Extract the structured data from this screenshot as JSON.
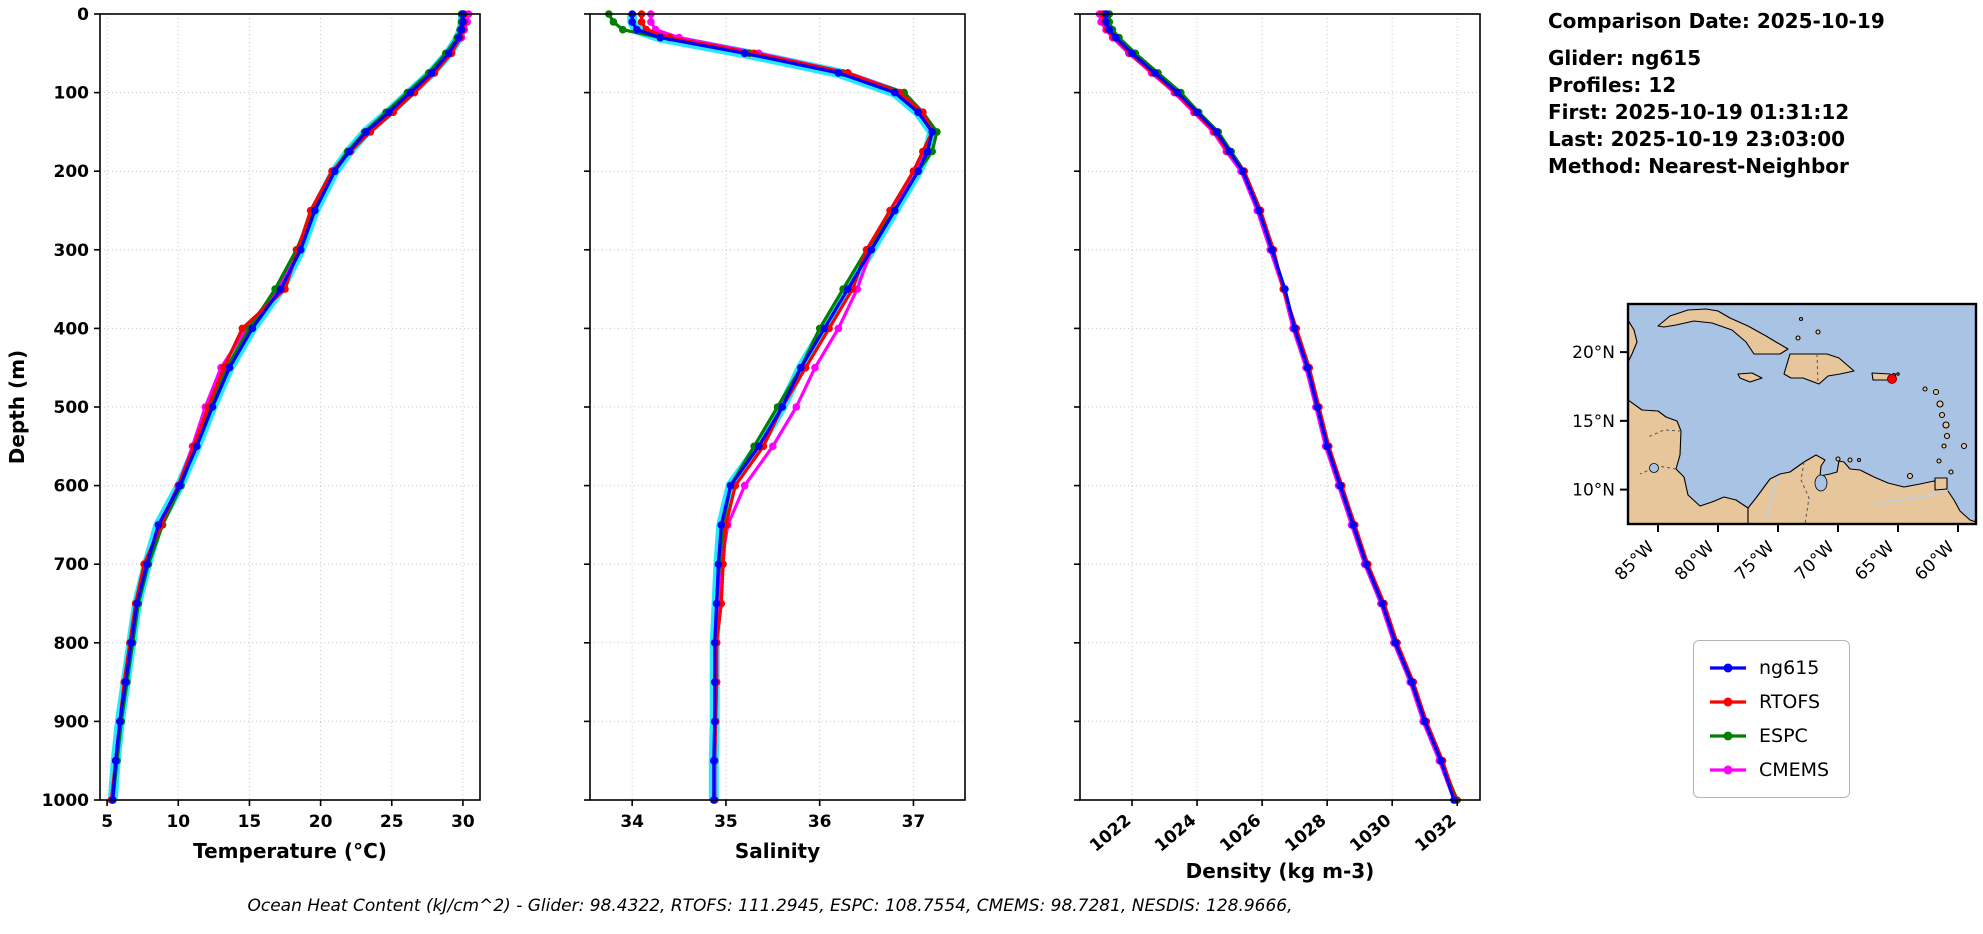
{
  "info_panel": {
    "comparison_date": "Comparison Date: 2025-10-19",
    "glider": "Glider: ng615",
    "profiles": "Profiles: 12",
    "first": "First: 2025-10-19 01:31:12",
    "last": "Last: 2025-10-19 23:03:00",
    "method": "Method: Nearest-Neighbor"
  },
  "legend": {
    "items": [
      {
        "label": "ng615",
        "color": "#0000ff"
      },
      {
        "label": "RTOFS",
        "color": "#ff0000"
      },
      {
        "label": "ESPC",
        "color": "#008000"
      },
      {
        "label": "CMEMS",
        "color": "#ff00ff"
      }
    ]
  },
  "footer": {
    "text": "Ocean Heat Content (kJ/cm^2) - Glider: 98.4322,  RTOFS: 111.2945,  ESPC: 108.7554,  CMEMS: 98.7281,  NESDIS: 128.9666,",
    "values": {
      "glider": 98.4322,
      "rtofs": 111.2945,
      "espc": 108.7554,
      "cmems": 98.7281,
      "nesdis": 128.9666
    }
  },
  "map": {
    "lat_ticks": [
      "20°N",
      "15°N",
      "10°N"
    ],
    "lon_ticks": [
      "85°W",
      "80°W",
      "75°W",
      "70°W",
      "65°W",
      "60°W"
    ],
    "ocean_color": "#a9c3e4",
    "land_color": "#e8c69c",
    "marker_color": "#ff0000",
    "marker": {
      "lon": -65.5,
      "lat": 18.05
    }
  },
  "chart_data": [
    {
      "id": "temperature",
      "type": "line",
      "xlabel": "Temperature (°C)",
      "ylabel": "Depth (m)",
      "xlim": [
        4.5,
        31.2
      ],
      "ylim": [
        0,
        1000
      ],
      "xticks": [
        5,
        10,
        15,
        20,
        25,
        30
      ],
      "yticks": [
        0,
        100,
        200,
        300,
        400,
        500,
        600,
        700,
        800,
        900,
        1000
      ],
      "show_ylabels": true,
      "xtick_rotate": false,
      "grid": true,
      "depths": [
        0,
        10,
        20,
        30,
        50,
        75,
        100,
        125,
        150,
        175,
        200,
        250,
        300,
        350,
        400,
        450,
        500,
        550,
        600,
        650,
        700,
        750,
        800,
        850,
        900,
        950,
        1000
      ],
      "series": [
        {
          "name": "ng615",
          "color": "#0000ff",
          "halo": "#00e5ff",
          "values": [
            30.0,
            30.0,
            29.9,
            29.7,
            29.0,
            27.8,
            26.3,
            24.8,
            23.2,
            22.0,
            21.0,
            19.6,
            18.6,
            17.2,
            15.2,
            13.6,
            12.4,
            11.3,
            10.1,
            8.6,
            7.8,
            7.1,
            6.7,
            6.3,
            5.9,
            5.6,
            5.4
          ]
        },
        {
          "name": "RTOFS",
          "color": "#ff0000",
          "values": [
            30.1,
            30.1,
            30.0,
            29.8,
            29.2,
            28.0,
            26.6,
            25.1,
            23.5,
            22.1,
            20.8,
            19.3,
            18.4,
            17.5,
            14.5,
            13.2,
            12.1,
            11.1,
            10.0,
            8.8,
            7.6,
            7.0,
            6.6,
            6.2,
            5.9,
            5.6,
            5.3
          ]
        },
        {
          "name": "ESPC",
          "color": "#008000",
          "values": [
            29.9,
            29.9,
            29.8,
            29.6,
            28.8,
            27.6,
            26.1,
            24.6,
            23.1,
            21.9,
            20.9,
            19.5,
            18.3,
            16.8,
            15.0,
            13.4,
            12.2,
            11.2,
            10.2,
            8.9,
            7.9,
            7.2,
            6.8,
            6.4,
            6.0,
            5.7,
            5.4
          ]
        },
        {
          "name": "CMEMS",
          "color": "#ff00ff",
          "values": [
            30.4,
            30.3,
            30.1,
            29.9,
            29.1,
            27.9,
            26.4,
            24.9,
            23.3,
            22.0,
            20.9,
            19.4,
            18.5,
            17.0,
            14.8,
            13.0,
            11.9,
            11.0,
            10.0,
            8.7,
            7.7,
            7.1,
            6.7,
            6.3,
            5.9,
            5.6,
            5.4
          ]
        }
      ]
    },
    {
      "id": "salinity",
      "type": "line",
      "xlabel": "Salinity",
      "ylabel": "",
      "xlim": [
        33.55,
        37.55
      ],
      "ylim": [
        0,
        1000
      ],
      "xticks": [
        34,
        35,
        36,
        37
      ],
      "yticks": [
        0,
        100,
        200,
        300,
        400,
        500,
        600,
        700,
        800,
        900,
        1000
      ],
      "show_ylabels": false,
      "xtick_rotate": false,
      "grid": true,
      "depths": [
        0,
        10,
        20,
        30,
        50,
        75,
        100,
        125,
        150,
        175,
        200,
        250,
        300,
        350,
        400,
        450,
        500,
        550,
        600,
        650,
        700,
        750,
        800,
        850,
        900,
        950,
        1000
      ],
      "series": [
        {
          "name": "ng615",
          "color": "#0000ff",
          "halo": "#00e5ff",
          "values": [
            34.0,
            34.0,
            34.05,
            34.3,
            35.2,
            36.2,
            36.8,
            37.05,
            37.2,
            37.15,
            37.05,
            36.8,
            36.55,
            36.3,
            36.05,
            35.8,
            35.6,
            35.35,
            35.05,
            34.95,
            34.92,
            34.9,
            34.88,
            34.88,
            34.88,
            34.87,
            34.87
          ]
        },
        {
          "name": "RTOFS",
          "color": "#ff0000",
          "values": [
            34.1,
            34.1,
            34.15,
            34.4,
            35.3,
            36.3,
            36.85,
            37.1,
            37.2,
            37.1,
            37.0,
            36.75,
            36.5,
            36.35,
            36.1,
            35.85,
            35.6,
            35.4,
            35.1,
            35.0,
            34.97,
            34.95,
            34.9,
            34.9,
            34.89,
            34.88,
            34.88
          ]
        },
        {
          "name": "ESPC",
          "color": "#008000",
          "values": [
            33.75,
            33.8,
            33.9,
            34.3,
            35.25,
            36.25,
            36.9,
            37.1,
            37.25,
            37.2,
            37.05,
            36.8,
            36.5,
            36.25,
            36.0,
            35.8,
            35.55,
            35.3,
            35.05,
            34.97,
            34.93,
            34.9,
            34.9,
            34.89,
            34.88,
            34.88,
            34.87
          ]
        },
        {
          "name": "CMEMS",
          "color": "#ff00ff",
          "values": [
            34.2,
            34.2,
            34.25,
            34.5,
            35.35,
            36.3,
            36.9,
            37.1,
            37.2,
            37.15,
            37.0,
            36.8,
            36.55,
            36.4,
            36.2,
            35.95,
            35.75,
            35.5,
            35.2,
            35.02,
            34.95,
            34.92,
            34.9,
            34.9,
            34.89,
            34.88,
            34.88
          ]
        }
      ]
    },
    {
      "id": "density",
      "type": "line",
      "xlabel": "Density (kg m-3)",
      "ylabel": "",
      "xlim": [
        1020.4,
        1032.7
      ],
      "ylim": [
        0,
        1000
      ],
      "xticks": [
        1022,
        1024,
        1026,
        1028,
        1030,
        1032
      ],
      "yticks": [
        0,
        100,
        200,
        300,
        400,
        500,
        600,
        700,
        800,
        900,
        1000
      ],
      "show_ylabels": false,
      "xtick_rotate": true,
      "grid": true,
      "depths": [
        0,
        10,
        20,
        30,
        50,
        75,
        100,
        125,
        150,
        175,
        200,
        250,
        300,
        350,
        400,
        450,
        500,
        550,
        600,
        650,
        700,
        750,
        800,
        850,
        900,
        950,
        1000
      ],
      "series": [
        {
          "name": "ng615",
          "color": "#0000ff",
          "values": [
            1021.2,
            1021.2,
            1021.3,
            1021.5,
            1022.0,
            1022.7,
            1023.4,
            1024.0,
            1024.6,
            1025.0,
            1025.4,
            1025.9,
            1026.3,
            1026.7,
            1027.0,
            1027.4,
            1027.7,
            1028.0,
            1028.4,
            1028.8,
            1029.2,
            1029.7,
            1030.1,
            1030.6,
            1031.0,
            1031.5,
            1031.9
          ]
        },
        {
          "name": "RTOFS",
          "color": "#ff0000",
          "values": [
            1021.1,
            1021.15,
            1021.25,
            1021.45,
            1021.95,
            1022.65,
            1023.35,
            1023.95,
            1024.55,
            1024.95,
            1025.45,
            1025.95,
            1026.35,
            1026.65,
            1027.05,
            1027.45,
            1027.75,
            1028.05,
            1028.45,
            1028.85,
            1029.25,
            1029.75,
            1030.15,
            1030.65,
            1031.05,
            1031.55,
            1031.95
          ]
        },
        {
          "name": "ESPC",
          "color": "#008000",
          "values": [
            1021.3,
            1021.3,
            1021.4,
            1021.6,
            1022.1,
            1022.8,
            1023.5,
            1024.05,
            1024.65,
            1025.05,
            1025.45,
            1025.95,
            1026.3,
            1026.7,
            1027.0,
            1027.4,
            1027.7,
            1028.0,
            1028.4,
            1028.8,
            1029.2,
            1029.7,
            1030.1,
            1030.6,
            1031.0,
            1031.5,
            1032.0
          ]
        },
        {
          "name": "CMEMS",
          "color": "#ff00ff",
          "values": [
            1021.0,
            1021.05,
            1021.2,
            1021.4,
            1021.9,
            1022.6,
            1023.3,
            1023.9,
            1024.5,
            1024.9,
            1025.35,
            1025.85,
            1026.25,
            1026.65,
            1026.95,
            1027.35,
            1027.65,
            1027.95,
            1028.35,
            1028.75,
            1029.15,
            1029.65,
            1030.05,
            1030.55,
            1030.95,
            1031.45,
            1031.9
          ]
        }
      ]
    }
  ]
}
